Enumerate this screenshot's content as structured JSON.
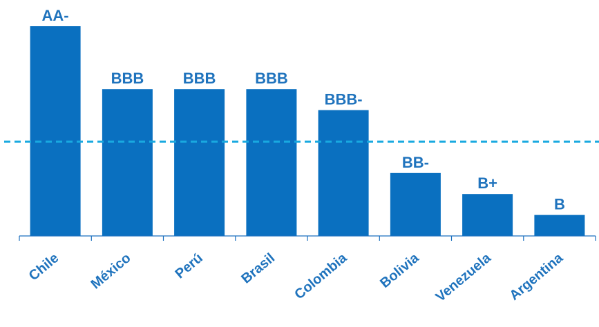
{
  "colors": {
    "bar": "#0a70c0",
    "label": "#1f73bd",
    "axis": "#1a6fbf",
    "reference_line": "#19a9e0"
  },
  "chart_data": {
    "type": "bar",
    "categories": [
      "Chile",
      "México",
      "Perú",
      "Brasil",
      "Colombia",
      "Bolivia",
      "Venezuela",
      "Argentina"
    ],
    "rating_labels": [
      "AA-",
      "BBB",
      "BBB",
      "BBB",
      "BBB-",
      "BB-",
      "B+",
      "B"
    ],
    "values": [
      10,
      7,
      7,
      7,
      6,
      3,
      2,
      1
    ],
    "ylim": [
      0,
      10
    ],
    "reference_line": {
      "value": 4.5,
      "style": "dashed"
    },
    "title": "",
    "xlabel": "",
    "ylabel": "",
    "grid": false,
    "legend": "none"
  }
}
